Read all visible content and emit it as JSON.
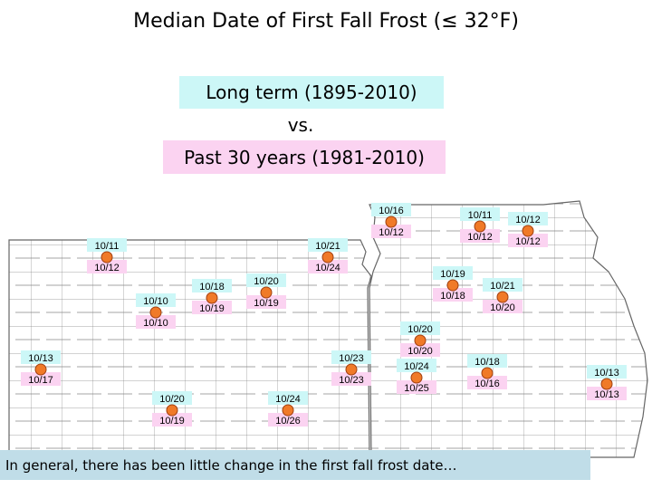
{
  "title": "Median Date of First Fall Frost (≤ 32°F)",
  "legend": {
    "long_term": "Long term (1895-2010)",
    "versus": "vs.",
    "recent": "Past 30 years (1981-2010)"
  },
  "stations": [
    {
      "long_term": "10/16",
      "recent": "10/12"
    },
    {
      "long_term": "10/11",
      "recent": "10/12"
    },
    {
      "long_term": "10/12",
      "recent": "10/12"
    },
    {
      "long_term": "10/11",
      "recent": "10/12"
    },
    {
      "long_term": "10/21",
      "recent": "10/24"
    },
    {
      "long_term": "10/18",
      "recent": "10/19"
    },
    {
      "long_term": "10/20",
      "recent": "10/19"
    },
    {
      "long_term": "10/10",
      "recent": "10/10"
    },
    {
      "long_term": "10/19",
      "recent": "10/18"
    },
    {
      "long_term": "10/21",
      "recent": "10/20"
    },
    {
      "long_term": "10/20",
      "recent": "10/20"
    },
    {
      "long_term": "10/24",
      "recent": "10/25"
    },
    {
      "long_term": "10/18",
      "recent": "10/16"
    },
    {
      "long_term": "10/13",
      "recent": "10/13"
    },
    {
      "long_term": "10/13",
      "recent": "10/17"
    },
    {
      "long_term": "10/23",
      "recent": "10/23"
    },
    {
      "long_term": "10/20",
      "recent": "10/19"
    },
    {
      "long_term": "10/24",
      "recent": "10/26"
    }
  ],
  "note": "In general, there has been little change in the first fall frost date…"
}
